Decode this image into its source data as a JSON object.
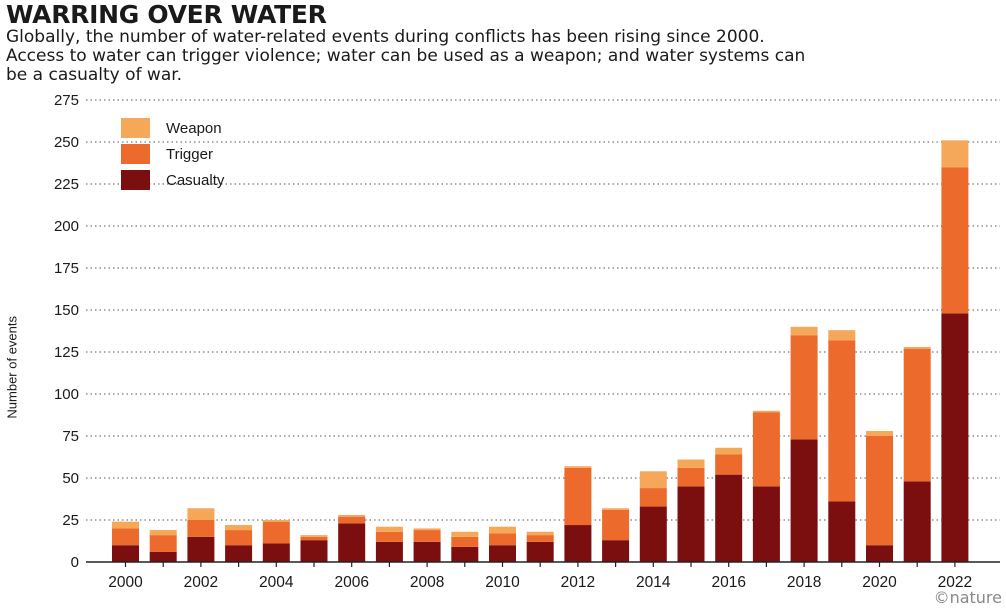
{
  "header": {
    "title": "WARRING OVER WATER",
    "subtitle": "Globally, the number of water-related events during conflicts has been rising since 2000. Access to water can trigger violence; water can be used as a weapon; and water systems can be a casualty of war."
  },
  "credit": "©nature",
  "colors": {
    "weapon": "#f6a85a",
    "trigger": "#ec6a2c",
    "casualty": "#7b0f10",
    "grid": "#777777"
  },
  "chart_data": {
    "type": "bar",
    "stacked": true,
    "title": "WARRING OVER WATER",
    "xlabel": "",
    "ylabel": "Number of events",
    "ylim": [
      0,
      275
    ],
    "yticks": [
      0,
      25,
      50,
      75,
      100,
      125,
      150,
      175,
      200,
      225,
      250,
      275
    ],
    "grid": true,
    "legend_position": "top-left",
    "categories": [
      "2000",
      "2001",
      "2002",
      "2003",
      "2004",
      "2005",
      "2006",
      "2007",
      "2008",
      "2009",
      "2010",
      "2011",
      "2012",
      "2013",
      "2014",
      "2015",
      "2016",
      "2017",
      "2018",
      "2019",
      "2020",
      "2021",
      "2022"
    ],
    "xtick_labels": [
      "2000",
      "2002",
      "2004",
      "2006",
      "2008",
      "2010",
      "2012",
      "2014",
      "2016",
      "2018",
      "2020",
      "2022"
    ],
    "series": [
      {
        "name": "Casualty",
        "key": "casualty",
        "values": [
          10,
          6,
          15,
          10,
          11,
          13,
          23,
          12,
          12,
          9,
          10,
          12,
          22,
          13,
          33,
          45,
          52,
          45,
          73,
          36,
          10,
          48,
          148
        ]
      },
      {
        "name": "Trigger",
        "key": "trigger",
        "values": [
          10,
          10,
          10,
          9,
          13,
          2,
          4,
          6,
          7,
          6,
          7,
          4,
          34,
          18,
          11,
          11,
          12,
          44,
          62,
          96,
          65,
          79,
          87
        ]
      },
      {
        "name": "Weapon",
        "key": "weapon",
        "values": [
          4,
          3,
          7,
          3,
          1,
          1,
          1,
          3,
          1,
          3,
          4,
          2,
          1,
          1,
          10,
          5,
          4,
          1,
          5,
          6,
          3,
          1,
          16
        ]
      }
    ],
    "legend": [
      "Weapon",
      "Trigger",
      "Casualty"
    ]
  }
}
